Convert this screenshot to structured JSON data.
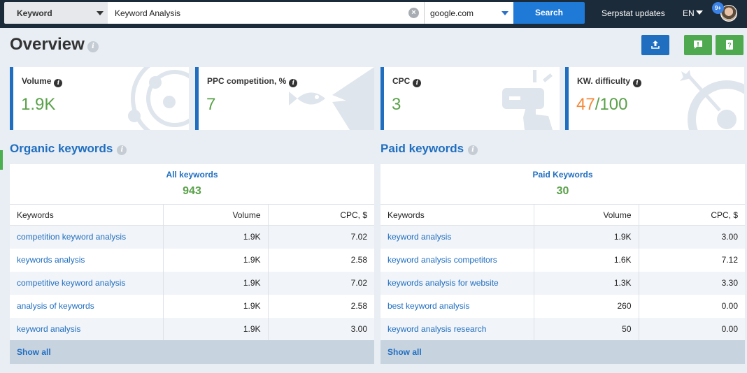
{
  "topbar": {
    "search_type": "Keyword",
    "query": "Keyword Analysis",
    "engine": "google.com",
    "search_label": "Search",
    "updates_label": "Serpstat updates",
    "language": "EN",
    "notification_count": "9+"
  },
  "header": {
    "title": "Overview"
  },
  "metrics": [
    {
      "label": "Volume",
      "value": "1.9K",
      "illustration": "target-circles"
    },
    {
      "label": "PPC competition, %",
      "value": "7",
      "illustration": "fish"
    },
    {
      "label": "CPC",
      "value": "3",
      "illustration": "click-hand"
    },
    {
      "label": "KW. difficulty",
      "value_highlight": "47",
      "value_rest": "/100",
      "illustration": "arrow-target"
    }
  ],
  "organic": {
    "title": "Organic keywords",
    "summary_label": "All keywords",
    "summary_value": "943",
    "columns": [
      "Keywords",
      "Volume",
      "CPC, $"
    ],
    "rows": [
      [
        "competition keyword analysis",
        "1.9K",
        "7.02"
      ],
      [
        "keywords analysis",
        "1.9K",
        "2.58"
      ],
      [
        "competitive keyword analysis",
        "1.9K",
        "7.02"
      ],
      [
        "analysis of keywords",
        "1.9K",
        "2.58"
      ],
      [
        "keyword analysis",
        "1.9K",
        "3.00"
      ]
    ],
    "show_all": "Show all"
  },
  "paid": {
    "title": "Paid keywords",
    "summary_label": "Paid Keywords",
    "summary_value": "30",
    "columns": [
      "Keywords",
      "Volume",
      "CPC, $"
    ],
    "rows": [
      [
        "keyword analysis",
        "1.9K",
        "3.00"
      ],
      [
        "keyword analysis competitors",
        "1.6K",
        "7.12"
      ],
      [
        "keywords analysis for website",
        "1.3K",
        "3.30"
      ],
      [
        "best keyword analysis",
        "260",
        "0.00"
      ],
      [
        "keyword analysis research",
        "50",
        "0.00"
      ]
    ],
    "show_all": "Show all"
  },
  "colors": {
    "topbar": "#1c2b3a",
    "accent_blue": "#1f6ec0",
    "green": "#5aa14a",
    "orange": "#f5893a",
    "show_all_bg": "#c8d3e0"
  }
}
